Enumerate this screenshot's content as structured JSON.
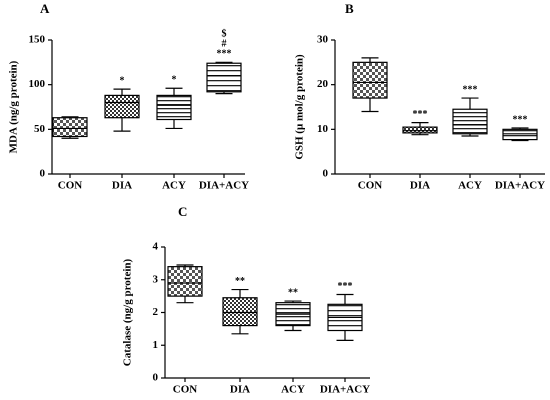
{
  "chart_data": [
    {
      "type": "box",
      "panel": "A",
      "ylabel": "MDA (ng/g protein)",
      "categories": [
        "CON",
        "DIA",
        "ACY",
        "DIA+ACY"
      ],
      "boxes": [
        {
          "min": 40,
          "q1": 42,
          "median": 51,
          "q3": 63,
          "max": 64
        },
        {
          "min": 48,
          "q1": 63,
          "median": 80,
          "q3": 88,
          "max": 95
        },
        {
          "min": 51,
          "q1": 61,
          "median": 77,
          "q3": 88,
          "max": 96
        },
        {
          "min": 90,
          "q1": 92,
          "median": 110,
          "q3": 124,
          "max": 125
        }
      ],
      "annotations": [
        null,
        [
          "*"
        ],
        [
          "*"
        ],
        [
          "***",
          "#",
          "$"
        ]
      ],
      "ylim": [
        0,
        150
      ],
      "yticks": [
        0,
        50,
        100,
        150
      ]
    },
    {
      "type": "box",
      "panel": "B",
      "ylabel": "GSH (μ mol/g protein)",
      "categories": [
        "CON",
        "DIA",
        "ACY",
        "DIA+ACY"
      ],
      "boxes": [
        {
          "min": 14,
          "q1": 17,
          "median": 20.5,
          "q3": 25,
          "max": 26
        },
        {
          "min": 8.8,
          "q1": 9.2,
          "median": 9.7,
          "q3": 10.5,
          "max": 11.5
        },
        {
          "min": 8.5,
          "q1": 9,
          "median": 11,
          "q3": 14.5,
          "max": 17
        },
        {
          "min": 7.5,
          "q1": 7.7,
          "median": 9,
          "q3": 10,
          "max": 10.3
        }
      ],
      "annotations": [
        null,
        [
          "***"
        ],
        [
          "***"
        ],
        [
          "***"
        ]
      ],
      "ylim": [
        0,
        30
      ],
      "yticks": [
        0,
        10,
        20,
        30
      ]
    },
    {
      "type": "box",
      "panel": "C",
      "ylabel": "Catalase (ng/g protein)",
      "categories": [
        "CON",
        "DIA",
        "ACY",
        "DIA+ACY"
      ],
      "boxes": [
        {
          "min": 2.3,
          "q1": 2.5,
          "median": 2.9,
          "q3": 3.4,
          "max": 3.45
        },
        {
          "min": 1.35,
          "q1": 1.6,
          "median": 2.0,
          "q3": 2.45,
          "max": 2.7
        },
        {
          "min": 1.45,
          "q1": 1.6,
          "median": 1.95,
          "q3": 2.3,
          "max": 2.35
        },
        {
          "min": 1.15,
          "q1": 1.45,
          "median": 1.85,
          "q3": 2.25,
          "max": 2.55
        }
      ],
      "annotations": [
        null,
        [
          "**"
        ],
        [
          "**"
        ],
        [
          "***"
        ]
      ],
      "ylim": [
        0,
        4
      ],
      "yticks": [
        0,
        1,
        2,
        3,
        4
      ]
    }
  ]
}
